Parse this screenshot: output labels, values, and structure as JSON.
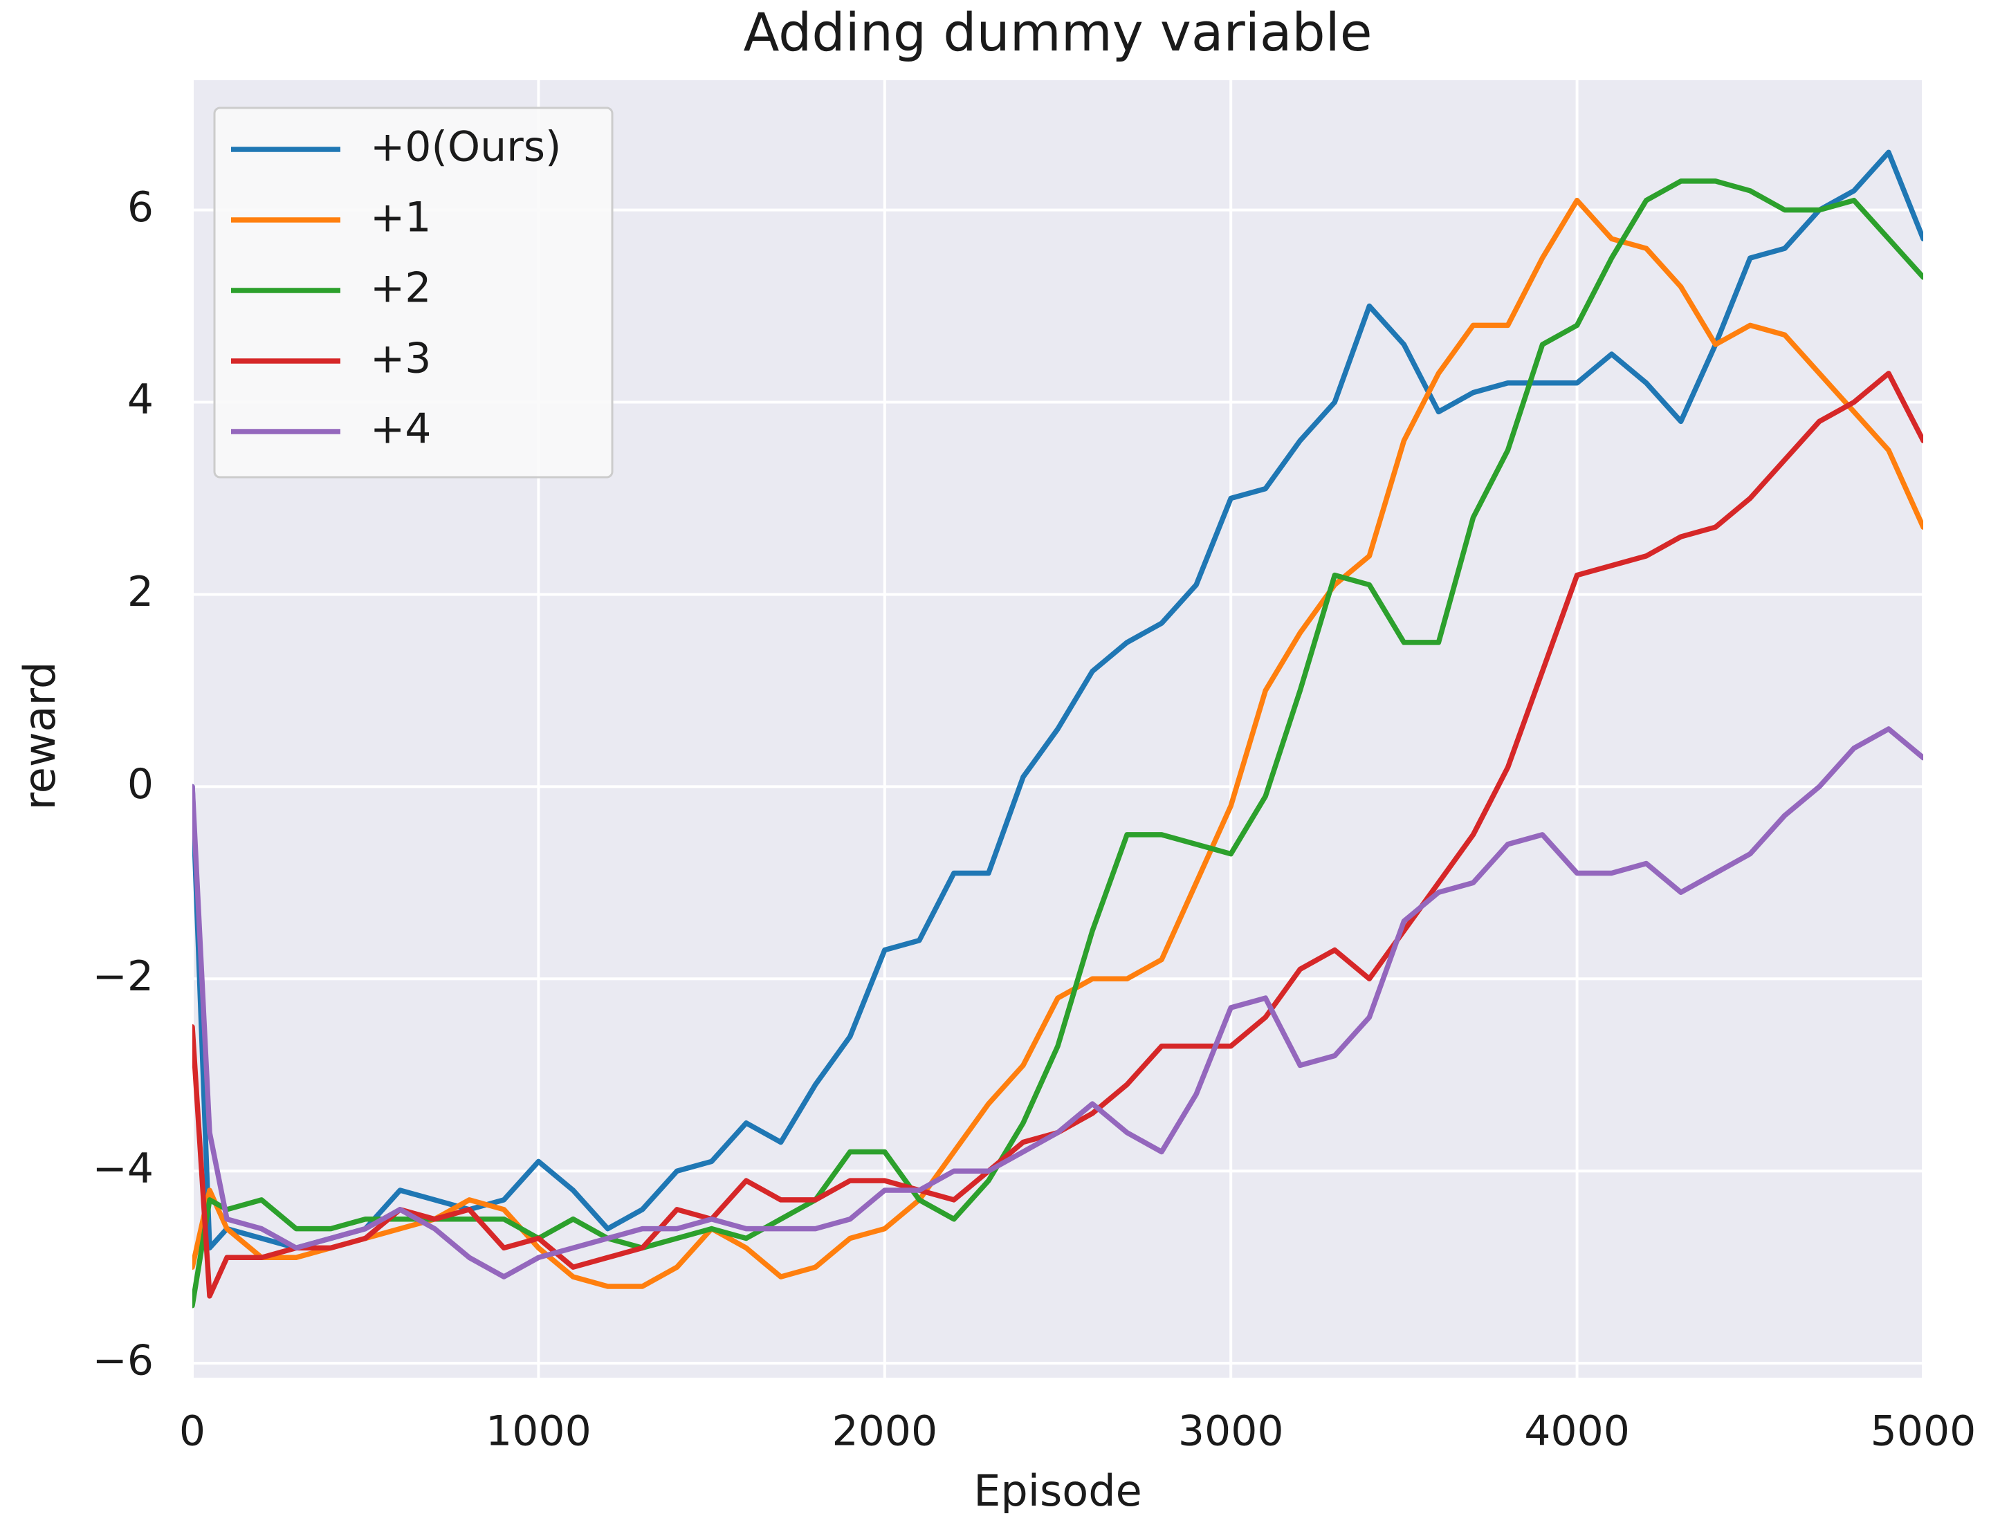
{
  "chart_data": {
    "type": "line",
    "title": "Adding dummy variable",
    "x_label": "Episode",
    "y_label": "reward",
    "xlim": [
      0,
      5000
    ],
    "ylim": [
      -6.15,
      7.35
    ],
    "xticks": [
      0,
      1000,
      2000,
      3000,
      4000,
      5000
    ],
    "yticks": [
      {
        "value": -6,
        "label": "−6"
      },
      {
        "value": -4,
        "label": "−4"
      },
      {
        "value": -2,
        "label": "−2"
      },
      0,
      2,
      4,
      6
    ],
    "grid": true,
    "legend": "upper left",
    "x": [
      0,
      50,
      100,
      200,
      300,
      400,
      500,
      600,
      700,
      800,
      900,
      1000,
      1100,
      1200,
      1300,
      1400,
      1500,
      1600,
      1700,
      1800,
      1900,
      2000,
      2100,
      2200,
      2300,
      2400,
      2500,
      2600,
      2700,
      2800,
      2900,
      3000,
      3100,
      3200,
      3300,
      3400,
      3500,
      3600,
      3700,
      3800,
      3900,
      4000,
      4100,
      4200,
      4300,
      4400,
      4500,
      4600,
      4700,
      4800,
      4900,
      5000
    ],
    "series": [
      {
        "name": "+0(Ours)",
        "color": "#1f77b4",
        "values": [
          0,
          -4.8,
          -4.6,
          -4.7,
          -4.8,
          -4.7,
          -4.6,
          -4.2,
          -4.3,
          -4.4,
          -4.3,
          -3.9,
          -4.2,
          -4.6,
          -4.4,
          -4.0,
          -3.9,
          -3.5,
          -3.7,
          -3.1,
          -2.6,
          -1.7,
          -1.6,
          -0.9,
          -0.9,
          0.1,
          0.6,
          1.2,
          1.5,
          1.7,
          2.1,
          3.0,
          3.1,
          3.6,
          4.0,
          5.0,
          4.6,
          3.9,
          4.1,
          4.2,
          4.2,
          4.2,
          4.5,
          4.2,
          3.8,
          4.6,
          5.5,
          5.6,
          6.0,
          6.2,
          6.6,
          5.7
        ]
      },
      {
        "name": "+1",
        "color": "#ff7f0e",
        "values": [
          -5.0,
          -4.2,
          -4.6,
          -4.9,
          -4.9,
          -4.8,
          -4.7,
          -4.6,
          -4.5,
          -4.3,
          -4.4,
          -4.8,
          -5.1,
          -5.2,
          -5.2,
          -5.0,
          -4.6,
          -4.8,
          -5.1,
          -5.0,
          -4.7,
          -4.6,
          -4.3,
          -3.8,
          -3.3,
          -2.9,
          -2.2,
          -2.0,
          -2.0,
          -1.8,
          -1.0,
          -0.2,
          1.0,
          1.6,
          2.1,
          2.4,
          3.6,
          4.3,
          4.8,
          4.8,
          5.5,
          6.1,
          5.7,
          5.6,
          5.2,
          4.6,
          4.8,
          4.7,
          4.3,
          3.9,
          3.5,
          2.7
        ]
      },
      {
        "name": "+2",
        "color": "#2ca02c",
        "values": [
          -5.4,
          -4.3,
          -4.4,
          -4.3,
          -4.6,
          -4.6,
          -4.5,
          -4.5,
          -4.5,
          -4.5,
          -4.5,
          -4.7,
          -4.5,
          -4.7,
          -4.8,
          -4.7,
          -4.6,
          -4.7,
          -4.5,
          -4.3,
          -3.8,
          -3.8,
          -4.3,
          -4.5,
          -4.1,
          -3.5,
          -2.7,
          -1.5,
          -0.5,
          -0.5,
          -0.6,
          -0.7,
          -0.1,
          1.0,
          2.2,
          2.1,
          1.5,
          1.5,
          2.8,
          3.5,
          4.6,
          4.8,
          5.5,
          6.1,
          6.3,
          6.3,
          6.2,
          6.0,
          6.0,
          6.1,
          5.7,
          5.3
        ]
      },
      {
        "name": "+3",
        "color": "#d62728",
        "values": [
          -2.5,
          -5.3,
          -4.9,
          -4.9,
          -4.8,
          -4.8,
          -4.7,
          -4.4,
          -4.5,
          -4.4,
          -4.8,
          -4.7,
          -5.0,
          -4.9,
          -4.8,
          -4.4,
          -4.5,
          -4.1,
          -4.3,
          -4.3,
          -4.1,
          -4.1,
          -4.2,
          -4.3,
          -4.0,
          -3.7,
          -3.6,
          -3.4,
          -3.1,
          -2.7,
          -2.7,
          -2.7,
          -2.4,
          -1.9,
          -1.7,
          -2.0,
          -1.5,
          -1.0,
          -0.5,
          0.2,
          1.2,
          2.2,
          2.3,
          2.4,
          2.6,
          2.7,
          3.0,
          3.4,
          3.8,
          4.0,
          4.3,
          3.6
        ]
      },
      {
        "name": "+4",
        "color": "#9467bd",
        "values": [
          0.0,
          -3.6,
          -4.5,
          -4.6,
          -4.8,
          -4.7,
          -4.6,
          -4.4,
          -4.6,
          -4.9,
          -5.1,
          -4.9,
          -4.8,
          -4.7,
          -4.6,
          -4.6,
          -4.5,
          -4.6,
          -4.6,
          -4.6,
          -4.5,
          -4.2,
          -4.2,
          -4.0,
          -4.0,
          -3.8,
          -3.6,
          -3.3,
          -3.6,
          -3.8,
          -3.2,
          -2.3,
          -2.2,
          -2.9,
          -2.8,
          -2.4,
          -1.4,
          -1.1,
          -1.0,
          -0.6,
          -0.5,
          -0.9,
          -0.9,
          -0.8,
          -1.1,
          -0.9,
          -0.7,
          -0.3,
          0.0,
          0.4,
          0.6,
          0.3
        ]
      }
    ]
  }
}
